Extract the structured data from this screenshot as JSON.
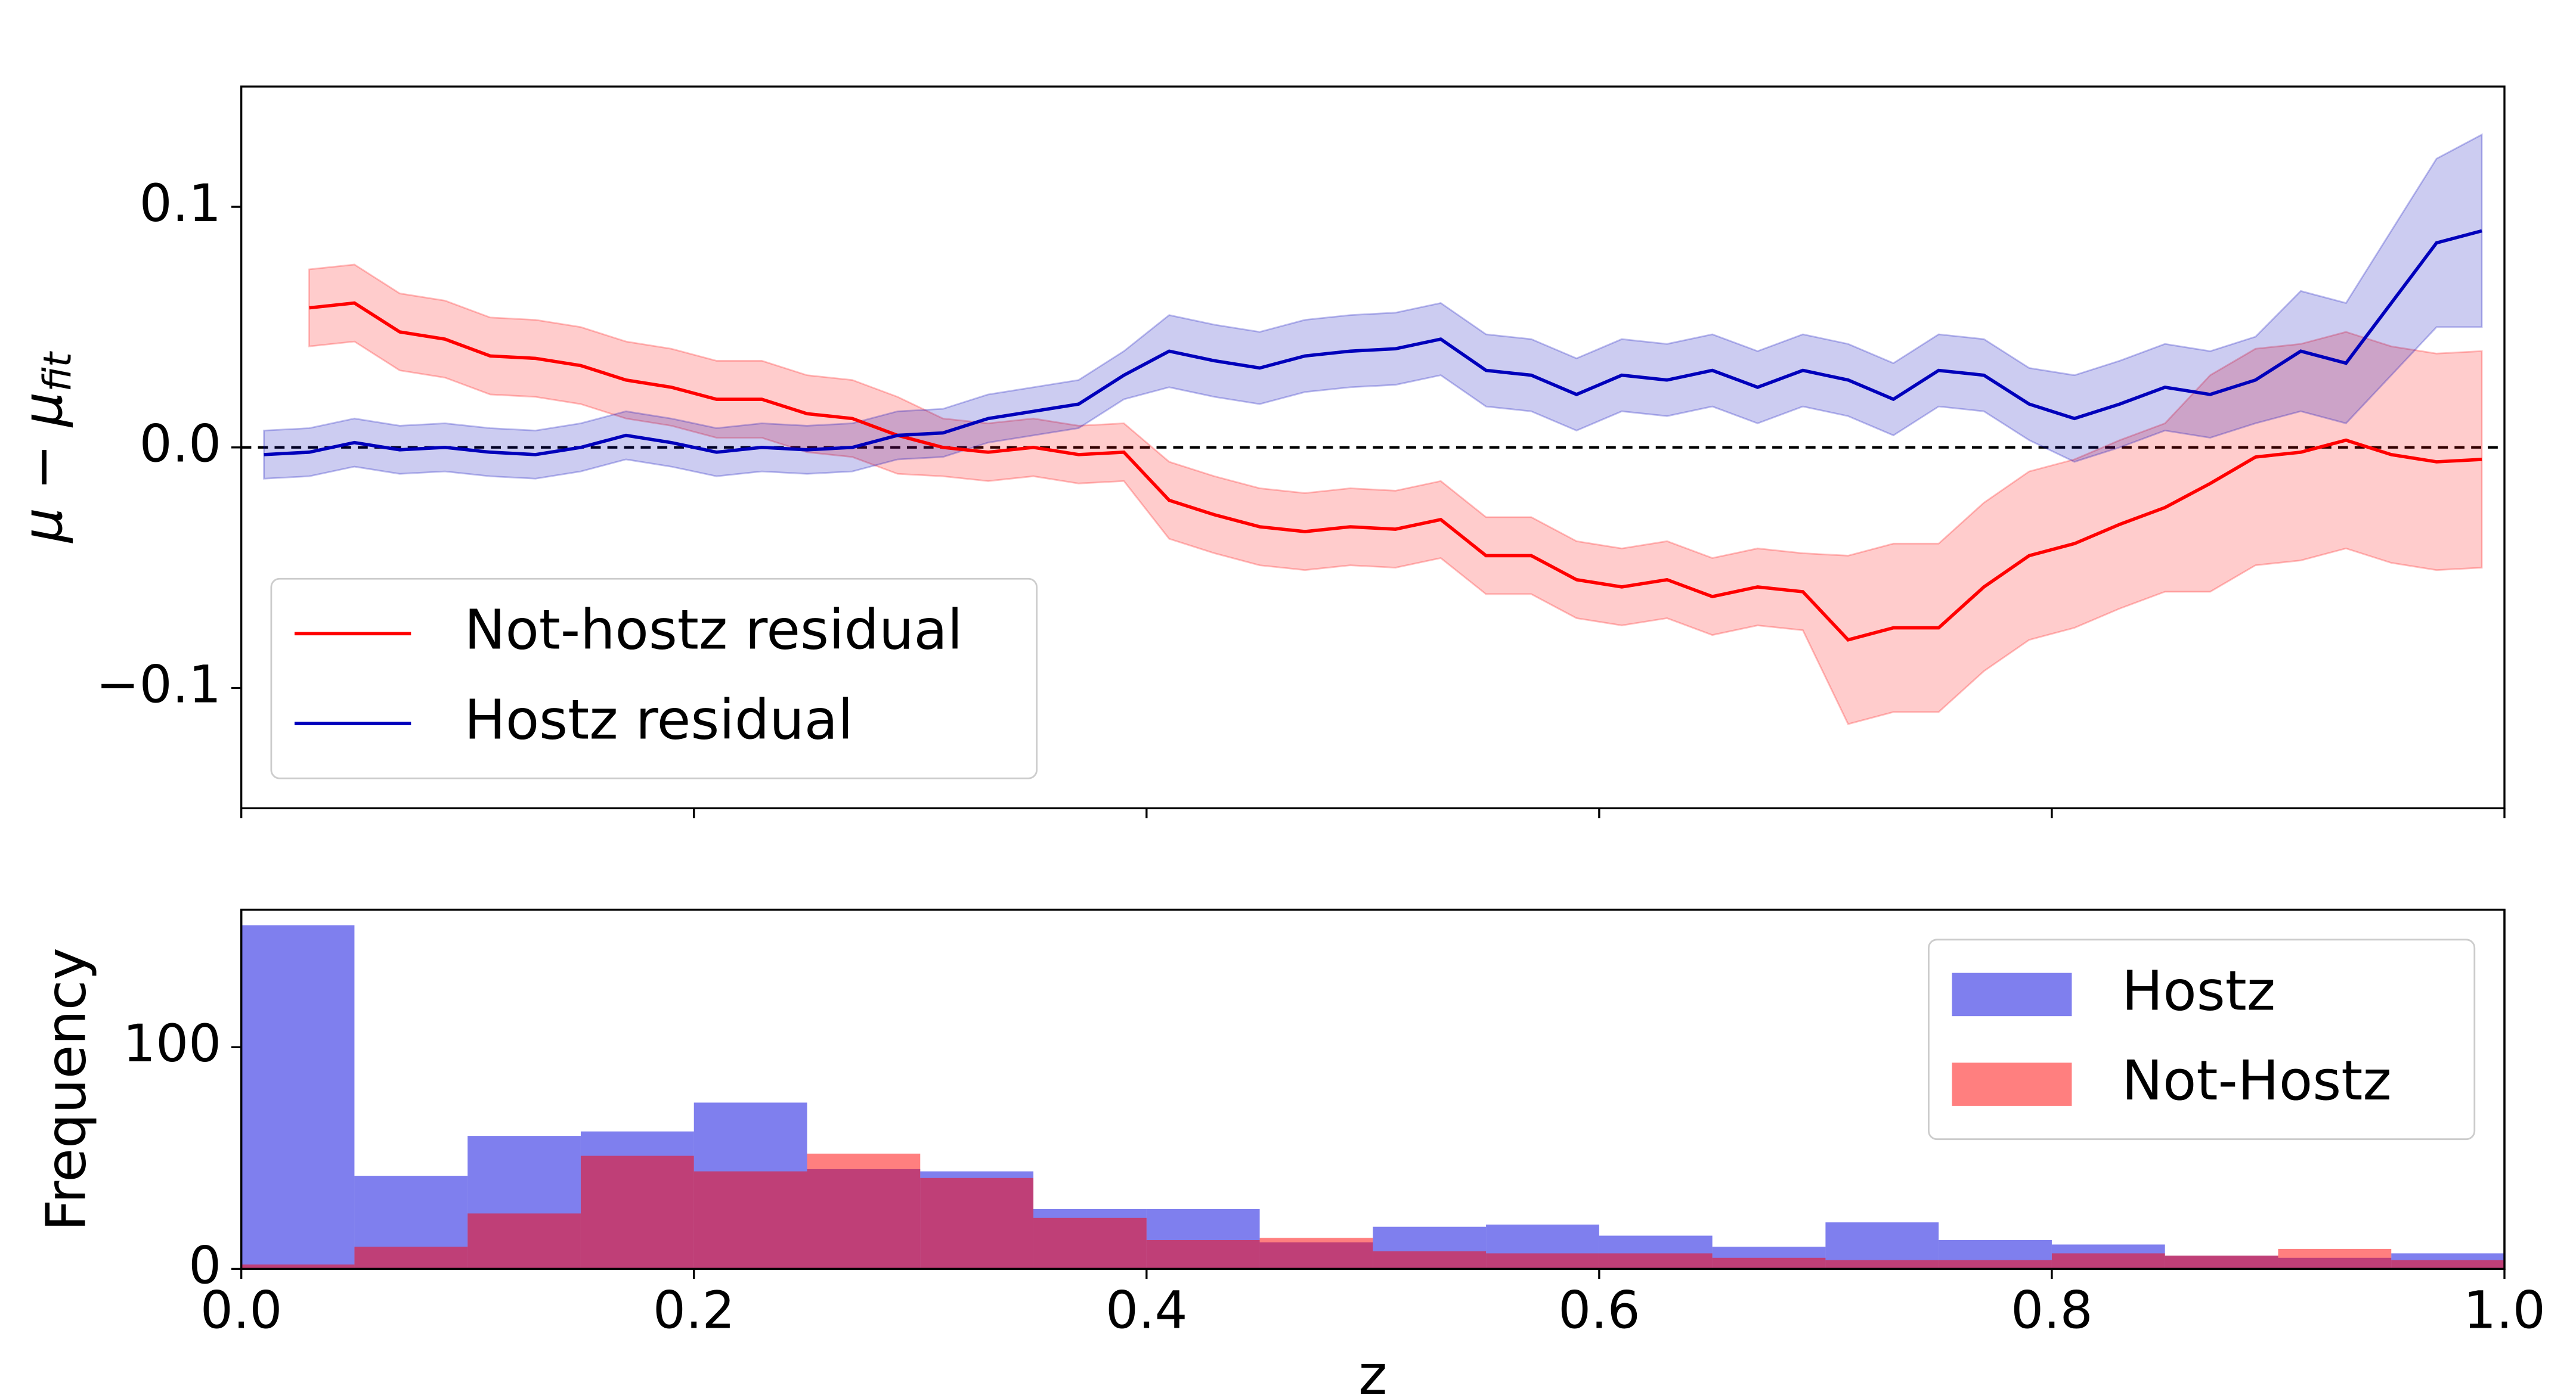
{
  "chart_data": [
    {
      "type": "line",
      "x": [
        0.01,
        0.03,
        0.05,
        0.07,
        0.09,
        0.11,
        0.13,
        0.15,
        0.17,
        0.19,
        0.21,
        0.23,
        0.25,
        0.27,
        0.29,
        0.31,
        0.33,
        0.35,
        0.37,
        0.39,
        0.41,
        0.43,
        0.45,
        0.47,
        0.49,
        0.51,
        0.53,
        0.55,
        0.57,
        0.59,
        0.61,
        0.63,
        0.65,
        0.67,
        0.69,
        0.71,
        0.73,
        0.75,
        0.77,
        0.79,
        0.81,
        0.83,
        0.85,
        0.87,
        0.89,
        0.91,
        0.93,
        0.95,
        0.97,
        0.99
      ],
      "series": [
        {
          "name": "Not-hostz residual",
          "color": "#ff0000",
          "values": [
            null,
            0.058,
            0.06,
            0.048,
            0.045,
            0.038,
            0.037,
            0.034,
            0.028,
            0.025,
            0.02,
            0.02,
            0.014,
            0.012,
            0.005,
            0.0,
            -0.002,
            0.0,
            -0.003,
            -0.002,
            -0.022,
            -0.028,
            -0.033,
            -0.035,
            -0.033,
            -0.034,
            -0.03,
            -0.045,
            -0.045,
            -0.055,
            -0.058,
            -0.055,
            -0.062,
            -0.058,
            -0.06,
            -0.08,
            -0.075,
            -0.075,
            -0.058,
            -0.045,
            -0.04,
            -0.032,
            -0.025,
            -0.015,
            -0.004,
            -0.002,
            0.003,
            -0.003,
            -0.006,
            -0.005
          ],
          "errors": [
            null,
            0.016,
            0.016,
            0.016,
            0.016,
            0.016,
            0.016,
            0.016,
            0.016,
            0.016,
            0.016,
            0.016,
            0.016,
            0.016,
            0.016,
            0.012,
            0.012,
            0.012,
            0.012,
            0.012,
            0.016,
            0.016,
            0.016,
            0.016,
            0.016,
            0.016,
            0.016,
            0.016,
            0.016,
            0.016,
            0.016,
            0.016,
            0.016,
            0.016,
            0.016,
            0.035,
            0.035,
            0.035,
            0.035,
            0.035,
            0.035,
            0.035,
            0.035,
            0.045,
            0.045,
            0.045,
            0.045,
            0.045,
            0.045,
            0.045
          ]
        },
        {
          "name": "Hostz residual",
          "color": "#0000bb",
          "values": [
            -0.003,
            -0.002,
            0.002,
            -0.001,
            0.0,
            -0.002,
            -0.003,
            0.0,
            0.005,
            0.002,
            -0.002,
            0.0,
            -0.001,
            0.0,
            0.005,
            0.006,
            0.012,
            0.015,
            0.018,
            0.03,
            0.04,
            0.036,
            0.033,
            0.038,
            0.04,
            0.041,
            0.045,
            0.032,
            0.03,
            0.022,
            0.03,
            0.028,
            0.032,
            0.025,
            0.032,
            0.028,
            0.02,
            0.032,
            0.03,
            0.018,
            0.012,
            0.018,
            0.025,
            0.022,
            0.028,
            0.04,
            0.035,
            0.06,
            0.085,
            0.09
          ],
          "errors": [
            0.01,
            0.01,
            0.01,
            0.01,
            0.01,
            0.01,
            0.01,
            0.01,
            0.01,
            0.01,
            0.01,
            0.01,
            0.01,
            0.01,
            0.01,
            0.01,
            0.01,
            0.01,
            0.01,
            0.01,
            0.015,
            0.015,
            0.015,
            0.015,
            0.015,
            0.015,
            0.015,
            0.015,
            0.015,
            0.015,
            0.015,
            0.015,
            0.015,
            0.015,
            0.015,
            0.015,
            0.015,
            0.015,
            0.015,
            0.015,
            0.018,
            0.018,
            0.018,
            0.018,
            0.018,
            0.025,
            0.025,
            0.03,
            0.035,
            0.04
          ]
        }
      ],
      "band_alpha": 0.2,
      "xlim": [
        0,
        1
      ],
      "ylim": [
        -0.15,
        0.15
      ],
      "xticks": [
        0,
        0.2,
        0.4,
        0.6,
        0.8,
        1
      ],
      "yticks": [
        {
          "value": -0.1,
          "label": "−0.1"
        },
        {
          "value": 0,
          "label": "0.0"
        },
        0.1
      ],
      "ylabel": {
        "text": "μ − μ",
        "subscript": "fit"
      },
      "hline": 0,
      "legend": "lower left"
    },
    {
      "type": "histogram",
      "bins": [
        0,
        0.05,
        0.1,
        0.15,
        0.2,
        0.25,
        0.3,
        0.35,
        0.4,
        0.45,
        0.5,
        0.55,
        0.6,
        0.65,
        0.7,
        0.75,
        0.8,
        0.85,
        0.9,
        0.95,
        1.0
      ],
      "series": [
        {
          "name": "Hostz",
          "color": "#0000dd",
          "alpha": 0.5,
          "values": [
            155,
            42,
            60,
            62,
            75,
            45,
            44,
            27,
            27,
            12,
            19,
            20,
            15,
            10,
            21,
            13,
            11,
            6,
            5,
            7
          ]
        },
        {
          "name": "Not-Hostz",
          "color": "#ff0000",
          "alpha": 0.5,
          "values": [
            2,
            10,
            25,
            51,
            44,
            52,
            41,
            23,
            13,
            14,
            8,
            7,
            7,
            5,
            4,
            4,
            7,
            6,
            9,
            4
          ]
        }
      ],
      "xlim": [
        0,
        1
      ],
      "ylim": [
        0,
        162
      ],
      "xticks": [
        {
          "value": 0,
          "label": "0.0"
        },
        0.2,
        0.4,
        0.6,
        0.8,
        {
          "value": 1,
          "label": "1.0"
        }
      ],
      "yticks": [
        0,
        100
      ],
      "xlabel": "z",
      "ylabel": "Frequency",
      "legend": "upper right"
    }
  ]
}
